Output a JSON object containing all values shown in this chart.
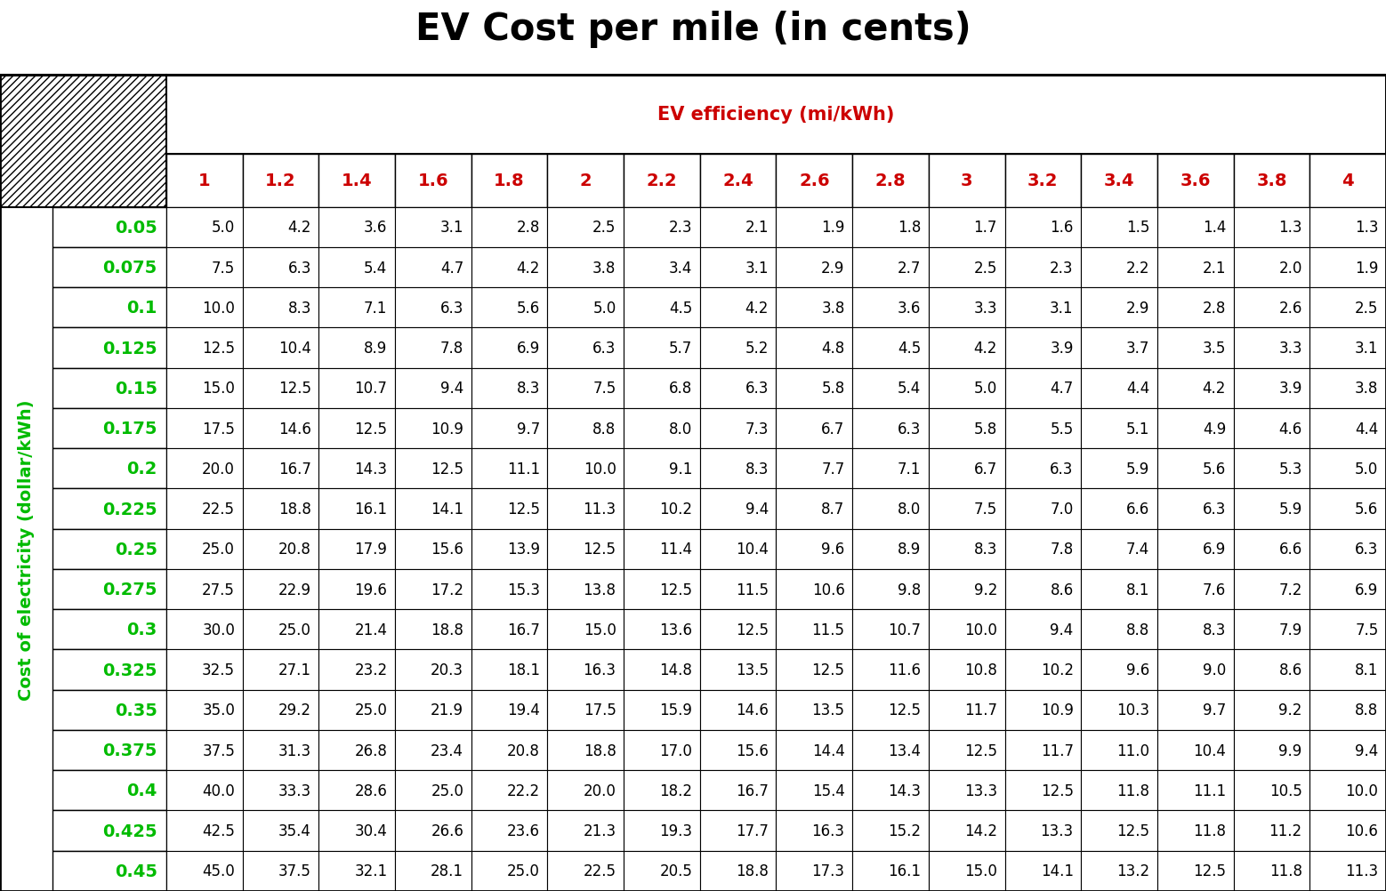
{
  "title": "EV Cost per mile (in cents)",
  "col_header_label": "EV efficiency (mi/kWh)",
  "row_header_label": "Cost of electricity (dollar/kWh)",
  "col_values": [
    "1",
    "1.2",
    "1.4",
    "1.6",
    "1.8",
    "2",
    "2.2",
    "2.4",
    "2.6",
    "2.8",
    "3",
    "3.2",
    "3.4",
    "3.6",
    "3.8",
    "4"
  ],
  "row_values": [
    "0.05",
    "0.075",
    "0.1",
    "0.125",
    "0.15",
    "0.175",
    "0.2",
    "0.225",
    "0.25",
    "0.275",
    "0.3",
    "0.325",
    "0.35",
    "0.375",
    "0.4",
    "0.425",
    "0.45"
  ],
  "table_data": [
    [
      "5.0",
      "4.2",
      "3.6",
      "3.1",
      "2.8",
      "2.5",
      "2.3",
      "2.1",
      "1.9",
      "1.8",
      "1.7",
      "1.6",
      "1.5",
      "1.4",
      "1.3",
      "1.3"
    ],
    [
      "7.5",
      "6.3",
      "5.4",
      "4.7",
      "4.2",
      "3.8",
      "3.4",
      "3.1",
      "2.9",
      "2.7",
      "2.5",
      "2.3",
      "2.2",
      "2.1",
      "2.0",
      "1.9"
    ],
    [
      "10.0",
      "8.3",
      "7.1",
      "6.3",
      "5.6",
      "5.0",
      "4.5",
      "4.2",
      "3.8",
      "3.6",
      "3.3",
      "3.1",
      "2.9",
      "2.8",
      "2.6",
      "2.5"
    ],
    [
      "12.5",
      "10.4",
      "8.9",
      "7.8",
      "6.9",
      "6.3",
      "5.7",
      "5.2",
      "4.8",
      "4.5",
      "4.2",
      "3.9",
      "3.7",
      "3.5",
      "3.3",
      "3.1"
    ],
    [
      "15.0",
      "12.5",
      "10.7",
      "9.4",
      "8.3",
      "7.5",
      "6.8",
      "6.3",
      "5.8",
      "5.4",
      "5.0",
      "4.7",
      "4.4",
      "4.2",
      "3.9",
      "3.8"
    ],
    [
      "17.5",
      "14.6",
      "12.5",
      "10.9",
      "9.7",
      "8.8",
      "8.0",
      "7.3",
      "6.7",
      "6.3",
      "5.8",
      "5.5",
      "5.1",
      "4.9",
      "4.6",
      "4.4"
    ],
    [
      "20.0",
      "16.7",
      "14.3",
      "12.5",
      "11.1",
      "10.0",
      "9.1",
      "8.3",
      "7.7",
      "7.1",
      "6.7",
      "6.3",
      "5.9",
      "5.6",
      "5.3",
      "5.0"
    ],
    [
      "22.5",
      "18.8",
      "16.1",
      "14.1",
      "12.5",
      "11.3",
      "10.2",
      "9.4",
      "8.7",
      "8.0",
      "7.5",
      "7.0",
      "6.6",
      "6.3",
      "5.9",
      "5.6"
    ],
    [
      "25.0",
      "20.8",
      "17.9",
      "15.6",
      "13.9",
      "12.5",
      "11.4",
      "10.4",
      "9.6",
      "8.9",
      "8.3",
      "7.8",
      "7.4",
      "6.9",
      "6.6",
      "6.3"
    ],
    [
      "27.5",
      "22.9",
      "19.6",
      "17.2",
      "15.3",
      "13.8",
      "12.5",
      "11.5",
      "10.6",
      "9.8",
      "9.2",
      "8.6",
      "8.1",
      "7.6",
      "7.2",
      "6.9"
    ],
    [
      "30.0",
      "25.0",
      "21.4",
      "18.8",
      "16.7",
      "15.0",
      "13.6",
      "12.5",
      "11.5",
      "10.7",
      "10.0",
      "9.4",
      "8.8",
      "8.3",
      "7.9",
      "7.5"
    ],
    [
      "32.5",
      "27.1",
      "23.2",
      "20.3",
      "18.1",
      "16.3",
      "14.8",
      "13.5",
      "12.5",
      "11.6",
      "10.8",
      "10.2",
      "9.6",
      "9.0",
      "8.6",
      "8.1"
    ],
    [
      "35.0",
      "29.2",
      "25.0",
      "21.9",
      "19.4",
      "17.5",
      "15.9",
      "14.6",
      "13.5",
      "12.5",
      "11.7",
      "10.9",
      "10.3",
      "9.7",
      "9.2",
      "8.8"
    ],
    [
      "37.5",
      "31.3",
      "26.8",
      "23.4",
      "20.8",
      "18.8",
      "17.0",
      "15.6",
      "14.4",
      "13.4",
      "12.5",
      "11.7",
      "11.0",
      "10.4",
      "9.9",
      "9.4"
    ],
    [
      "40.0",
      "33.3",
      "28.6",
      "25.0",
      "22.2",
      "20.0",
      "18.2",
      "16.7",
      "15.4",
      "14.3",
      "13.3",
      "12.5",
      "11.8",
      "11.1",
      "10.5",
      "10.0"
    ],
    [
      "42.5",
      "35.4",
      "30.4",
      "26.6",
      "23.6",
      "21.3",
      "19.3",
      "17.7",
      "16.3",
      "15.2",
      "14.2",
      "13.3",
      "12.5",
      "11.8",
      "11.2",
      "10.6"
    ],
    [
      "45.0",
      "37.5",
      "32.1",
      "28.1",
      "25.0",
      "22.5",
      "20.5",
      "18.8",
      "17.3",
      "16.1",
      "15.0",
      "14.1",
      "13.2",
      "12.5",
      "11.8",
      "11.3"
    ]
  ],
  "title_fontsize": 30,
  "col_header_label_fontsize": 15,
  "col_header_fontsize": 14,
  "row_header_fontsize": 14,
  "row_axis_label_fontsize": 14,
  "cell_fontsize": 12,
  "title_color": "#000000",
  "col_header_label_color": "#cc0000",
  "col_header_color": "#cc0000",
  "row_header_color": "#00bb00",
  "row_axis_label_color": "#00bb00",
  "cell_color": "#000000",
  "bg_color": "#ffffff",
  "grid_color": "#000000"
}
